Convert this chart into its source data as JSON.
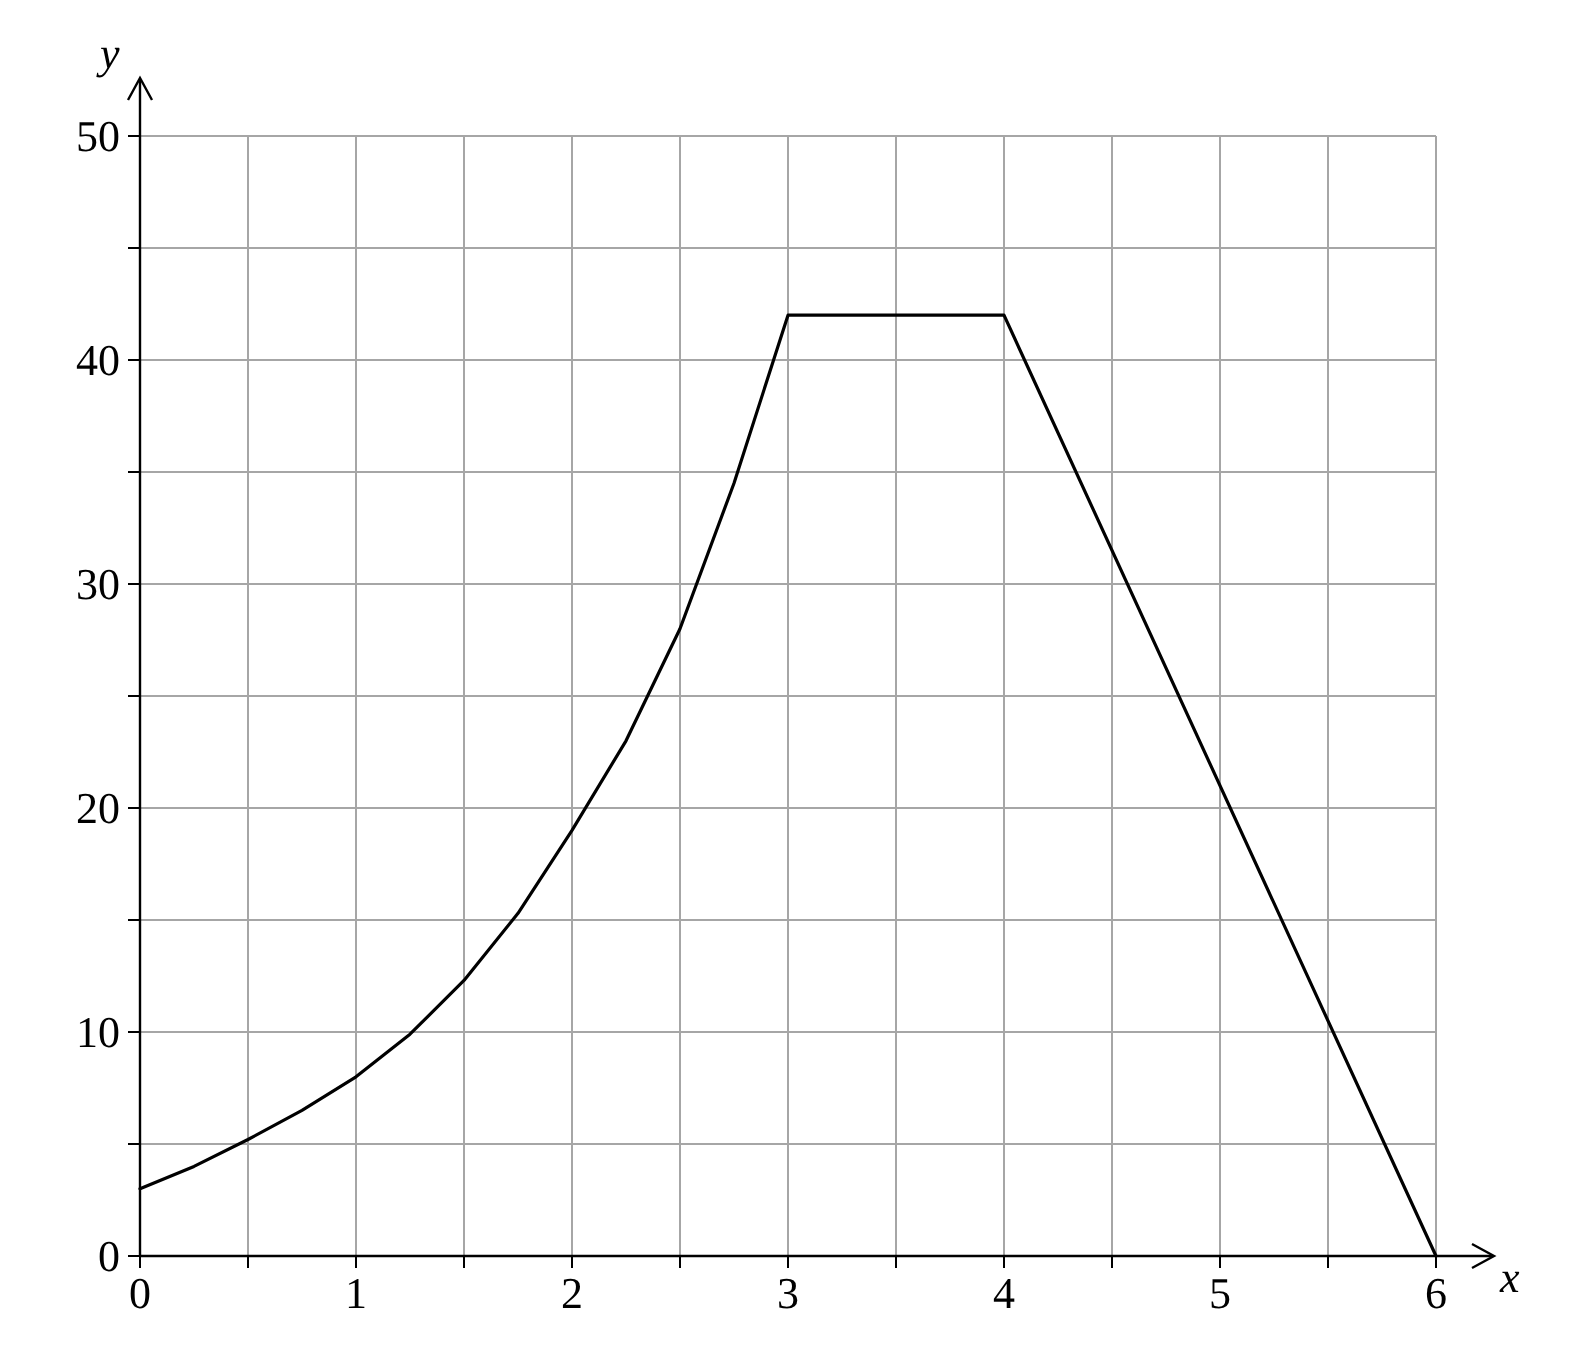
{
  "chart_data": {
    "type": "line",
    "xlabel": "x",
    "ylabel": "y",
    "x": [
      0,
      0.25,
      0.5,
      0.75,
      1,
      1.25,
      1.5,
      1.75,
      2,
      2.25,
      2.5,
      2.75,
      3,
      4,
      6
    ],
    "series": [
      {
        "color": "#000000",
        "values": [
          3,
          4,
          5.2,
          6.5,
          8,
          9.9,
          12.3,
          15.3,
          19,
          23,
          28,
          34.5,
          42,
          42,
          0
        ]
      }
    ],
    "xlim": [
      0,
      6
    ],
    "ylim": [
      0,
      50
    ],
    "xticks": [
      0,
      {
        "value": 0.5,
        "label": null
      },
      1,
      {
        "value": 1.5,
        "label": null
      },
      2,
      {
        "value": 2.5,
        "label": null
      },
      3,
      {
        "value": 3.5,
        "label": null
      },
      4,
      {
        "value": 4.5,
        "label": null
      },
      5,
      {
        "value": 5.5,
        "label": null
      },
      6
    ],
    "yticks": [
      0,
      {
        "value": 5,
        "label": null
      },
      10,
      {
        "value": 15,
        "label": null
      },
      20,
      {
        "value": 25,
        "label": null
      },
      30,
      {
        "value": 35,
        "label": null
      },
      40,
      {
        "value": 45,
        "label": null
      },
      50
    ],
    "grid": true,
    "marker": "none",
    "line_style": "solid"
  }
}
